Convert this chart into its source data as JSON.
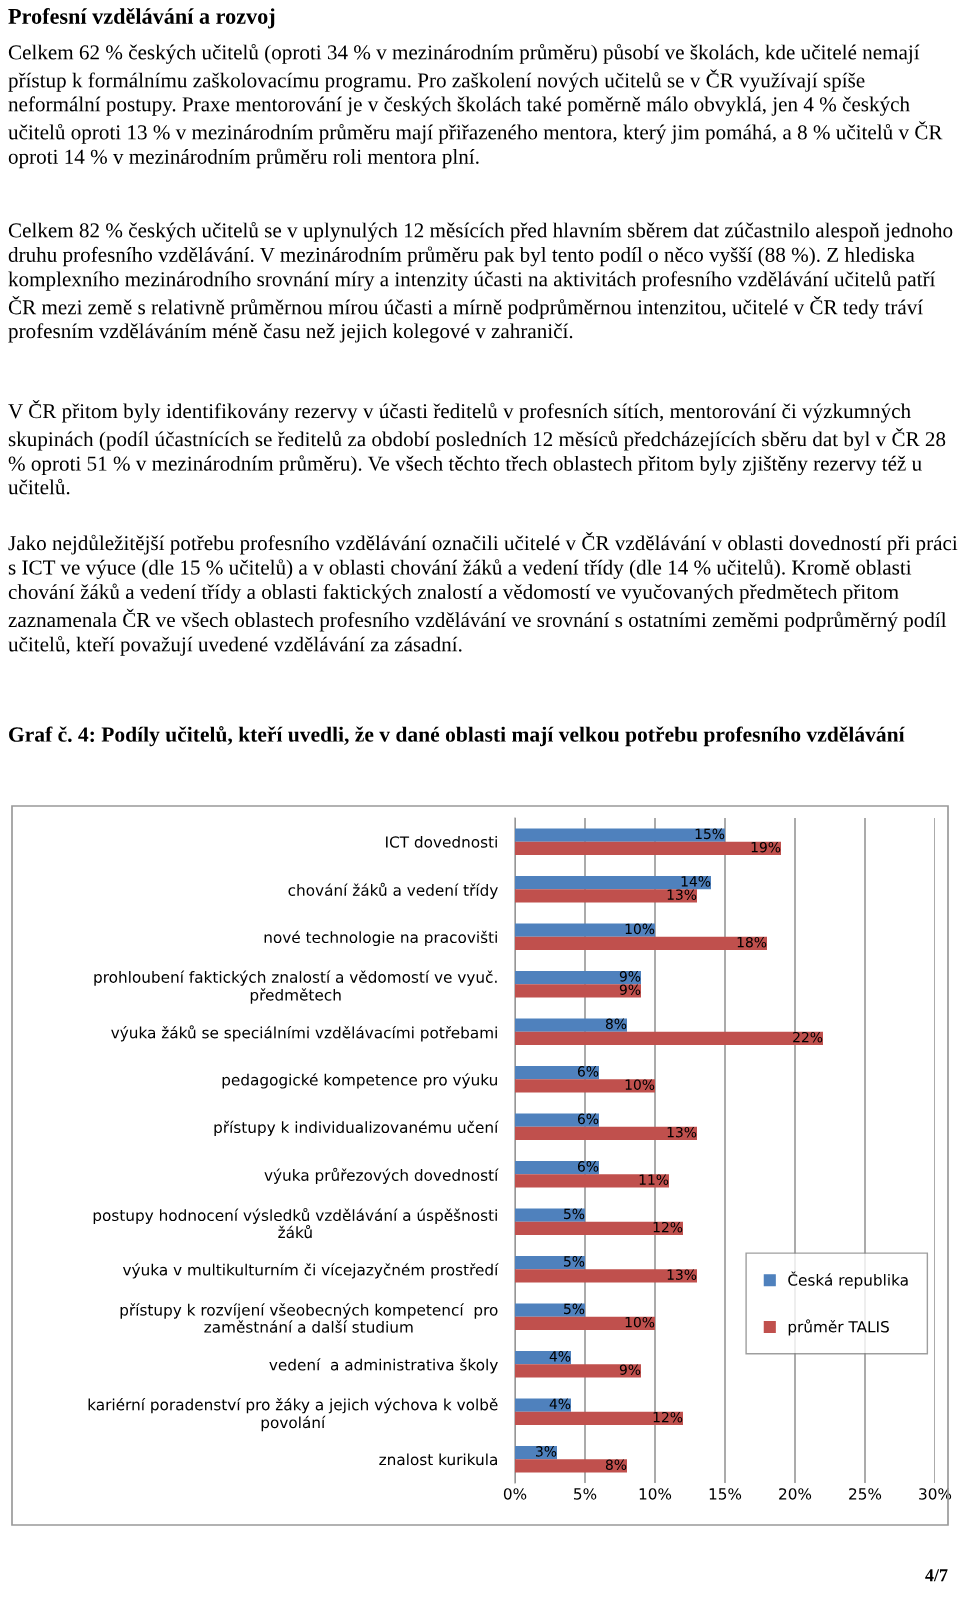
{
  "chart_data": {
    "type": "bar",
    "orientation": "horizontal",
    "title": "Graf č. 4: Podíly učitelů, kteří uvedli, že v dané oblasti mají velkou potřebu profesního vzdělávání",
    "annotations": [
      "Profesní vzdělávání a rozvoj",
      "Celkem 62 % českých učitelů (oproti 34 % v mezinárodním průměru) působí ve školách, kde učitelé nemají přístup k formálnímu zaškolovacímu programu. Pro zaškolení nových učitelů se v ČR využívají spíše neformální postupy. Praxe mentorování je v českých školách také poměrně málo obvyklá, jen 4 % českých učitelů oproti 13 % v mezinárodním průměru mají přiřazeného mentora, který jim pomáhá, a 8 % učitelů v ČR oproti 14 % v mezinárodním průměru roli mentora plní.",
      "Celkem 82 % českých učitelů se v uplynulých 12 měsících před hlavním sběrem dat zúčastnilo alespoň jednoho druhu profesního vzdělávání. V mezinárodním průměru pak byl tento podíl o něco vyšší (88 %). Z hlediska komplexního mezinárodního srovnání míry a intenzity účasti na aktivitách profesního vzdělávání učitelů patří ČR mezi země s relativně průměrnou mírou účasti a mírně podprůměrnou intenzitou, učitelé v ČR tedy tráví profesním vzděláváním méně času než jejich kolegové v zahraničí.",
      "V ČR přitom byly identifikovány rezervy v účasti ředitelů v profesních sítích, mentorování či výzkumných skupinách (podíl účastnících se ředitelů za období posledních 12 měsíců předcházejících sběru dat byl v ČR 28 % oproti 51 % v mezinárodním průměru). Ve všech těchto třech oblastech přitom byly zjištěny rezervy též u učitelů.",
      "Jako nejdůležitější potřebu profesního vzdělávání označili učitelé v ČR vzdělávání v oblasti dovedností při práci s ICT ve výuce (dle 15 % učitelů) a v oblasti chování žáků a vedení třídy (dle 14 % učitelů). Kromě oblasti chování žáků a vedení třídy a oblasti faktických znalostí a vědomostí ve vyučovaných předmětech přitom zaznamenala ČR ve všech oblastech profesního vzdělávání ve srovnání s ostatními zeměmi podprůměrný podíl učitelů, kteří považují uvedené vzdělávání za zásadní.",
      "4/7"
    ],
    "categories": [
      "ICT dovednosti",
      "chování žáků a vedení třídy",
      "nové technologie na pracovišti",
      "prohloubení faktických znalostí a vědomostí ve vyuč.\npředmětech",
      "výuka žáků se speciálními vzdělávacími potřebami",
      "pedagogické kompetence pro výuku",
      "přístupy k individualizovanému učení",
      "výuka průřezových dovedností",
      "postupy hodnocení výsledků vzdělávání a úspěšnosti\nžáků",
      "výuka v multikulturním či vícejazyčném prostředí",
      "přístupy k rozvíjení všeobecných kompetencí  pro\nzaměstnání a další studium",
      "vedení  a administrativa školy",
      "kariérní poradenství pro žáky a jejich výchova k volbě\npovolání",
      "znalost kurikula"
    ],
    "series": [
      {
        "name": "Česká republika",
        "color": "#4f81bd",
        "values": [
          15,
          14,
          10,
          9,
          8,
          6,
          6,
          6,
          5,
          5,
          5,
          4,
          4,
          3
        ],
        "value_labels": [
          "15%",
          "14%",
          "10%",
          "9%",
          "8%",
          "6%",
          "6%",
          "6%",
          "5%",
          "5%",
          "5%",
          "4%",
          "4%",
          "3%"
        ]
      },
      {
        "name": "průměr TALIS",
        "color": "#c0504d",
        "values": [
          19,
          13,
          18,
          9,
          22,
          10,
          13,
          11,
          12,
          13,
          10,
          9,
          12,
          8
        ],
        "value_labels": [
          "19%",
          "13%",
          "18%",
          "9%",
          "22%",
          "10%",
          "13%",
          "11%",
          "12%",
          "13%",
          "10%",
          "9%",
          "12%",
          "8%"
        ]
      }
    ],
    "xlim": [
      0,
      30
    ],
    "xticks": [
      {
        "value": 0,
        "label": "0%"
      },
      {
        "value": 5,
        "label": "5%"
      },
      {
        "value": 10,
        "label": "10%"
      },
      {
        "value": 15,
        "label": "15%"
      },
      {
        "value": 20,
        "label": "20%"
      },
      {
        "value": 25,
        "label": "25%"
      },
      {
        "value": 30,
        "label": "30%"
      }
    ],
    "grid": "x",
    "legend": "right"
  }
}
